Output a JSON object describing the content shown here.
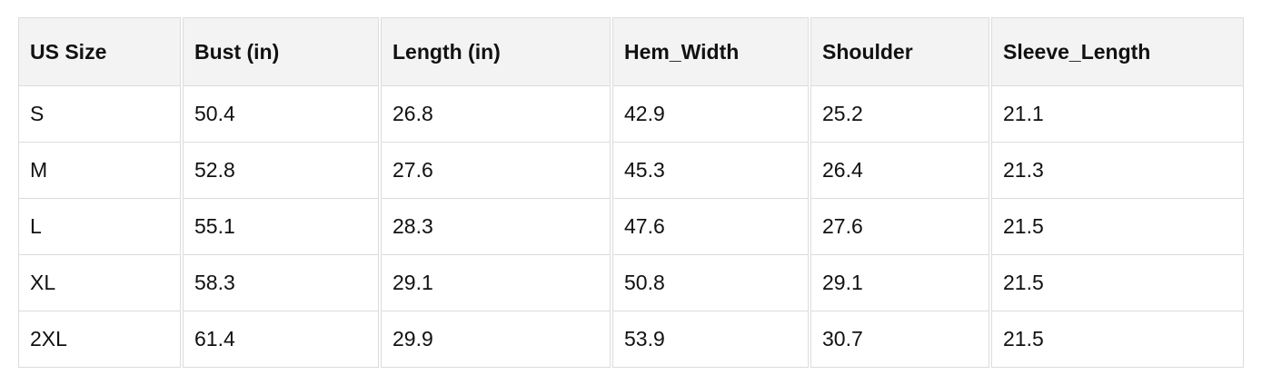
{
  "table": {
    "headers": [
      "US Size",
      "Bust (in)",
      "Length (in)",
      "Hem_Width",
      "Shoulder",
      "Sleeve_Length"
    ],
    "rows": [
      [
        "S",
        "50.4",
        "26.8",
        "42.9",
        "25.2",
        "21.1"
      ],
      [
        "M",
        "52.8",
        "27.6",
        "45.3",
        "26.4",
        "21.3"
      ],
      [
        "L",
        "55.1",
        "28.3",
        "47.6",
        "27.6",
        "21.5"
      ],
      [
        "XL",
        "58.3",
        "29.1",
        "50.8",
        "29.1",
        "21.5"
      ],
      [
        "2XL",
        "61.4",
        "29.9",
        "53.9",
        "30.7",
        "21.5"
      ]
    ]
  }
}
